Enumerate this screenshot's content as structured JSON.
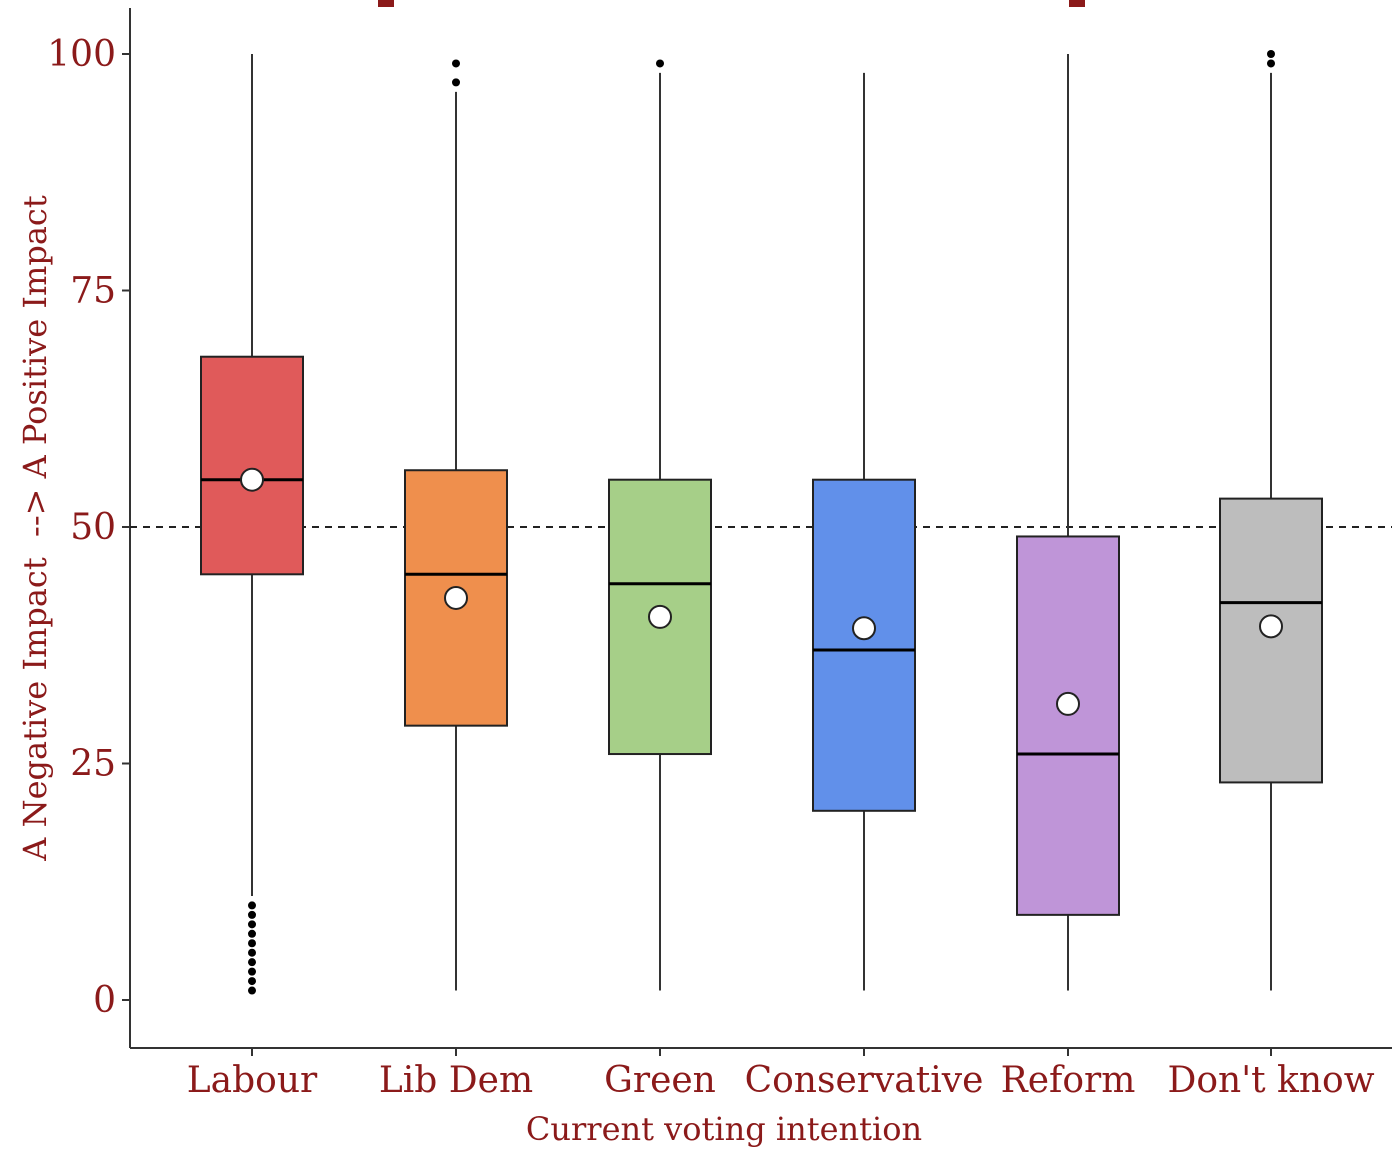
{
  "chart_data": {
    "type": "box",
    "title": "",
    "xlabel": "Current voting intention",
    "ylabel": "A Negative Impact  --> A Positive Impact",
    "ylim": [
      -5,
      105
    ],
    "yticks": [
      0,
      25,
      50,
      75,
      100
    ],
    "reference_line": {
      "y": 50,
      "style": "dashed"
    },
    "grid": false,
    "categories": [
      "Labour",
      "Lib Dem",
      "Green",
      "Conservative",
      "Reform",
      "Don't know"
    ],
    "boxes": [
      {
        "name": "Labour",
        "color": "#e05a5a",
        "whisker_low": 11,
        "q1": 45,
        "median": 55,
        "q3": 68,
        "whisker_high": 100,
        "mean": 55,
        "outliers": [
          1,
          2,
          3,
          4,
          5,
          6,
          7,
          8,
          9,
          10
        ]
      },
      {
        "name": "Lib Dem",
        "color": "#ef8f4d",
        "whisker_low": 1,
        "q1": 29,
        "median": 45,
        "q3": 56,
        "whisker_high": 96,
        "mean": 42.5,
        "outliers": [
          97,
          99
        ]
      },
      {
        "name": "Green",
        "color": "#a6cf88",
        "whisker_low": 1,
        "q1": 26,
        "median": 44,
        "q3": 55,
        "whisker_high": 98,
        "mean": 40.5,
        "outliers": [
          99
        ]
      },
      {
        "name": "Conservative",
        "color": "#6190ea",
        "whisker_low": 1,
        "q1": 20,
        "median": 37,
        "q3": 55,
        "whisker_high": 98,
        "mean": 39.3,
        "outliers": []
      },
      {
        "name": "Reform",
        "color": "#bf95d8",
        "whisker_low": 1,
        "q1": 9,
        "median": 26,
        "q3": 49,
        "whisker_high": 100,
        "mean": 31.3,
        "outliers": []
      },
      {
        "name": "Don't know",
        "color": "#bdbdbd",
        "whisker_low": 1,
        "q1": 23,
        "median": 42,
        "q3": 53,
        "whisker_high": 98,
        "mean": 39.5,
        "outliers": [
          99,
          100
        ]
      }
    ],
    "colors": {
      "text": "#8b1a1a",
      "axis": "#333333"
    }
  }
}
